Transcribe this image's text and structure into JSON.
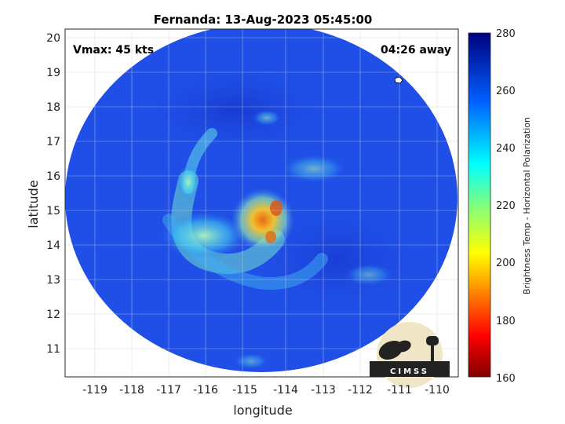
{
  "title": "Fernanda: 13-Aug-2023 05:45:00",
  "vmax_text": "Vmax: 45 kts",
  "away_text": "04:26 away",
  "xlabel": "longitude",
  "ylabel": "latitude",
  "x_ticks": [
    "-119",
    "-118",
    "-117",
    "-116",
    "-115",
    "-114",
    "-113",
    "-112",
    "-111",
    "-110"
  ],
  "y_ticks": [
    "20",
    "19",
    "18",
    "17",
    "16",
    "15",
    "14",
    "13",
    "12",
    "11"
  ],
  "colorbar": {
    "label": "Brightness Temp - Horizontal Polarization",
    "ticks": [
      "280",
      "260",
      "240",
      "220",
      "200",
      "180",
      "160"
    ],
    "range": [
      160,
      280
    ],
    "colormap": "jet"
  },
  "logo": {
    "text": "CIMSS"
  },
  "colors": {
    "background_field": "#1f4fe6",
    "storm_core": "#e8a020",
    "rainband": "#7ee6c8"
  }
}
